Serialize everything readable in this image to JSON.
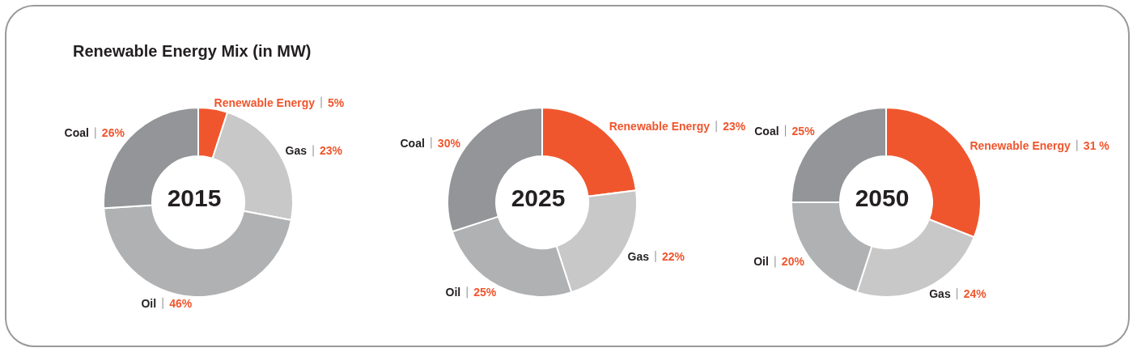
{
  "chart_data": [
    {
      "type": "donut",
      "title": "2015",
      "annotations": [
        "Renewable Energy Mix (in MW)"
      ],
      "categories": [
        "Renewable Energy",
        "Gas",
        "Oil",
        "Coal"
      ],
      "values": [
        5,
        23,
        46,
        26
      ],
      "value_labels": [
        "5%",
        "23%",
        "46%",
        "26%"
      ],
      "colors": [
        "#f0562d",
        "#c8c8c9",
        "#b0b1b3",
        "#939598"
      ],
      "legend": false
    },
    {
      "type": "donut",
      "title": "2025",
      "categories": [
        "Renewable Energy",
        "Gas",
        "Oil",
        "Coal"
      ],
      "values": [
        23,
        22,
        25,
        30
      ],
      "value_labels": [
        "23%",
        "22%",
        "25%",
        "30%"
      ],
      "colors": [
        "#f0562d",
        "#c8c8c9",
        "#b0b1b3",
        "#939598"
      ],
      "legend": false
    },
    {
      "type": "donut",
      "title": "2050",
      "categories": [
        "Renewable Energy",
        "Gas",
        "Oil",
        "Coal"
      ],
      "values": [
        31,
        24,
        20,
        25
      ],
      "value_labels": [
        "31 %",
        "24%",
        "20%",
        "25%"
      ],
      "colors": [
        "#f0562d",
        "#c8c8c9",
        "#b0b1b3",
        "#939598"
      ],
      "legend": false
    }
  ]
}
